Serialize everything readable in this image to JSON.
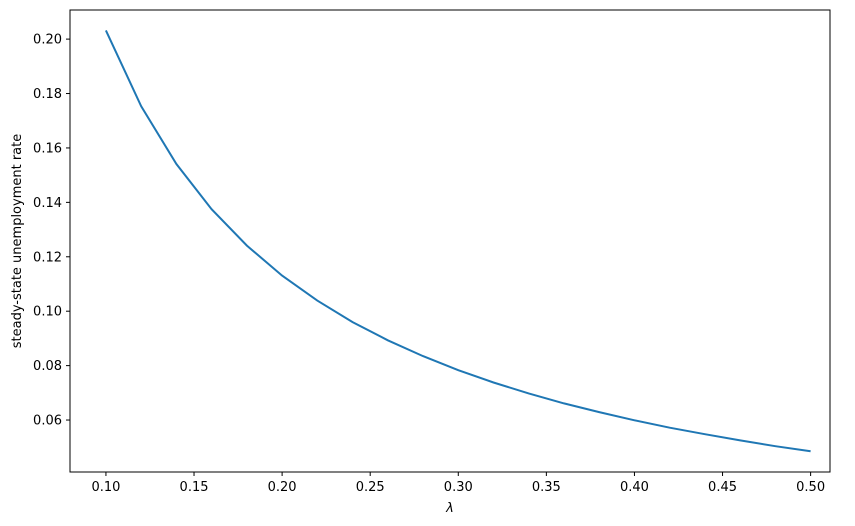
{
  "chart_data": {
    "type": "line",
    "title": "",
    "xlabel": "λ",
    "ylabel": "steady-state unemployment rate",
    "xlim": [
      0.0796,
      0.511
    ],
    "ylim": [
      0.0409,
      0.2107
    ],
    "xticks": [
      "0.10",
      "0.15",
      "0.20",
      "0.25",
      "0.30",
      "0.35",
      "0.40",
      "0.45",
      "0.50"
    ],
    "yticks": [
      "0.06",
      "0.08",
      "0.10",
      "0.12",
      "0.14",
      "0.16",
      "0.18",
      "0.20"
    ],
    "grid": false,
    "color": "#1f77b4",
    "x": [
      0.1,
      0.12,
      0.14,
      0.16,
      0.18,
      0.2,
      0.22,
      0.24,
      0.26,
      0.28,
      0.3,
      0.32,
      0.34,
      0.36,
      0.38,
      0.4,
      0.42,
      0.44,
      0.46,
      0.48,
      0.5
    ],
    "y": [
      0.2032,
      0.1753,
      0.1541,
      0.1375,
      0.1241,
      0.1131,
      0.1039,
      0.096,
      0.0893,
      0.0835,
      0.0783,
      0.0738,
      0.0698,
      0.0661,
      0.0629,
      0.0599,
      0.0572,
      0.0548,
      0.0525,
      0.0504,
      0.0485
    ]
  }
}
